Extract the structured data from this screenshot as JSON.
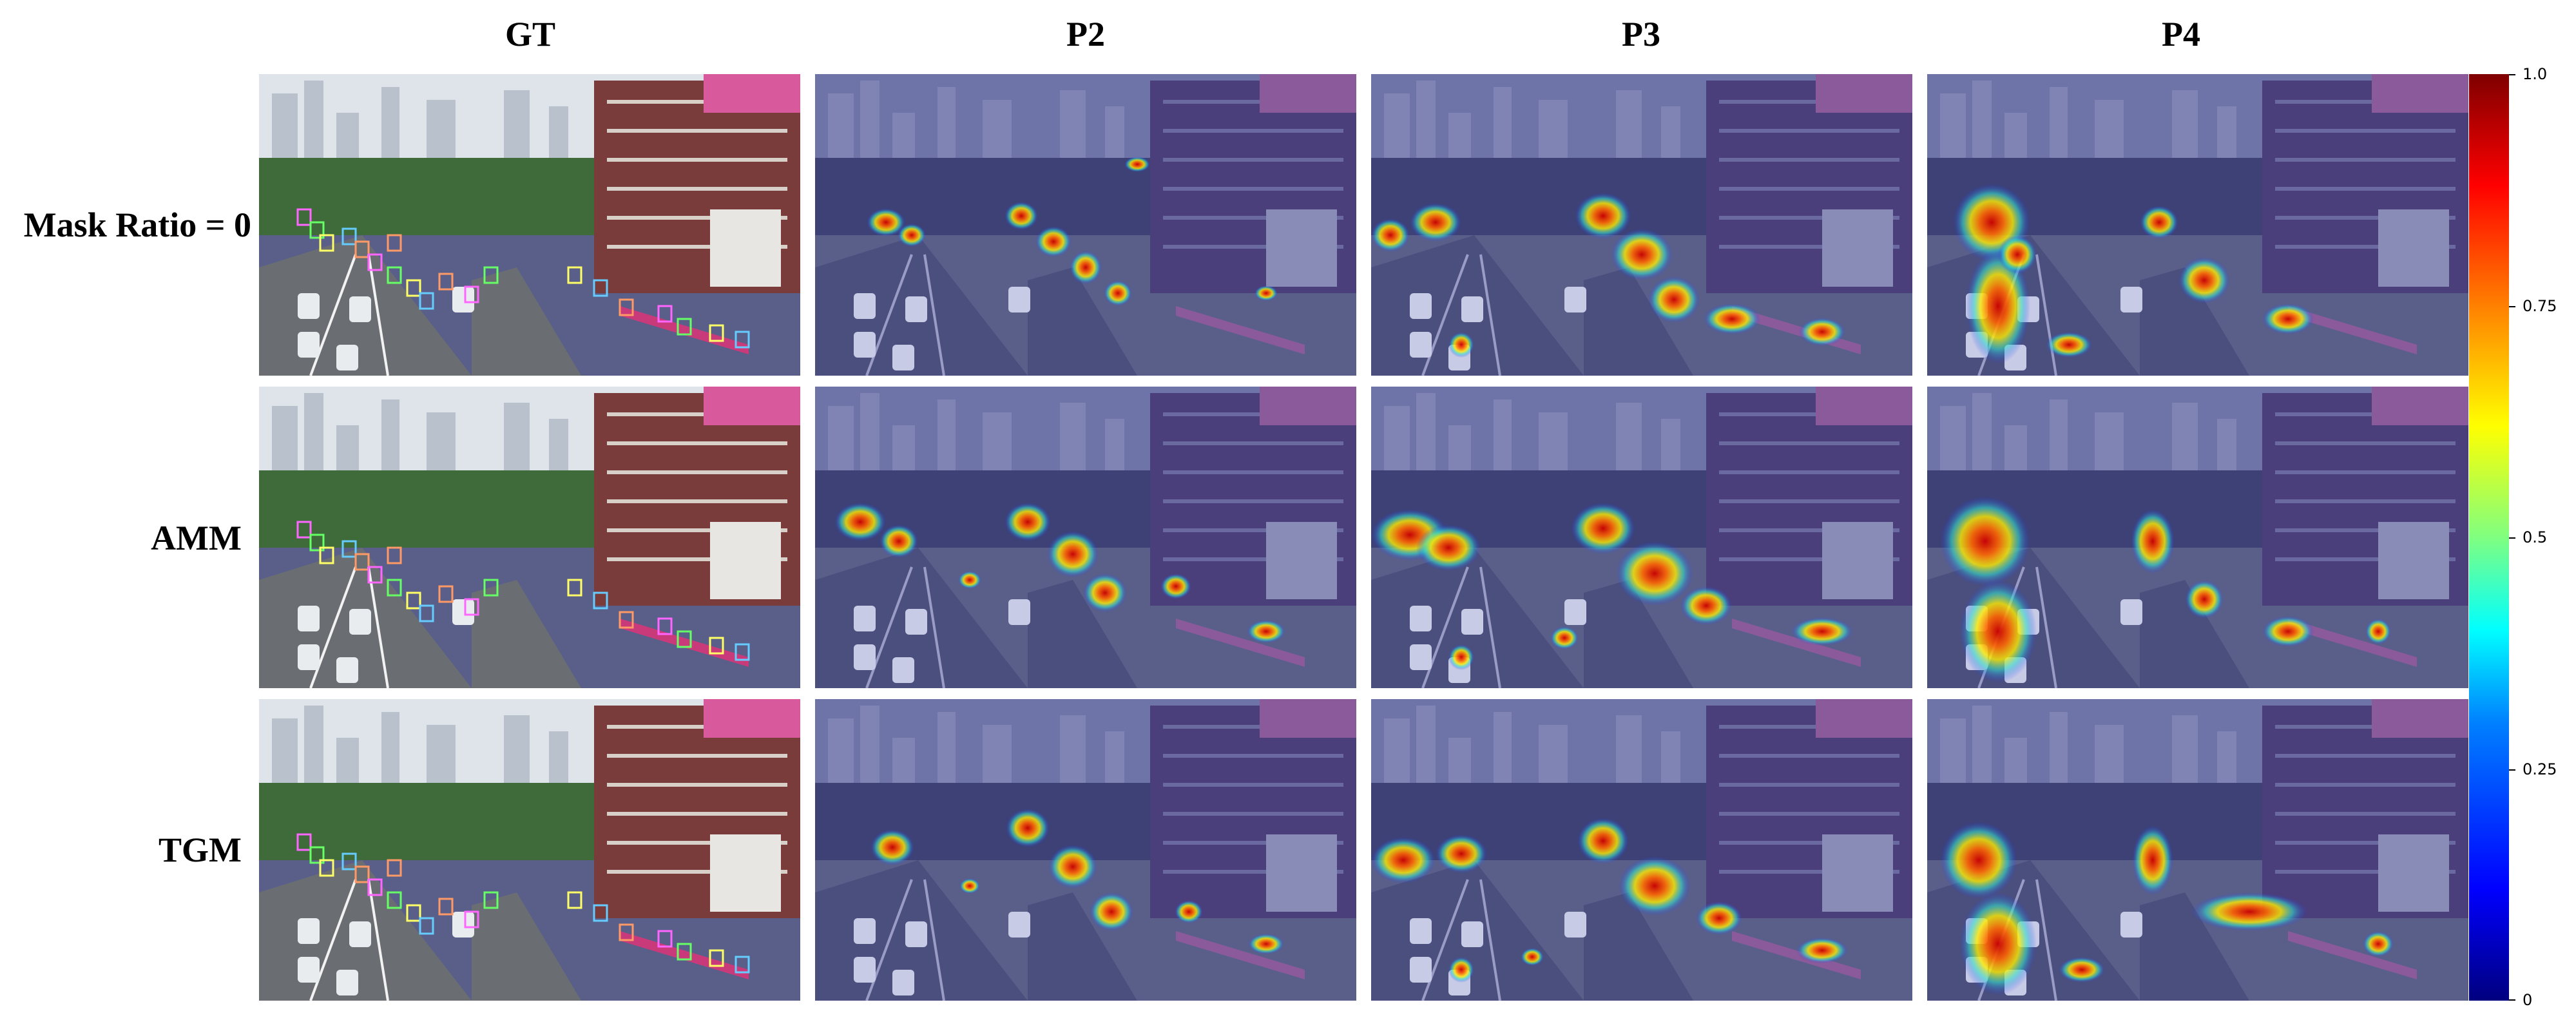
{
  "figure": {
    "column_titles": [
      "GT",
      "P2",
      "P3",
      "P4"
    ],
    "row_labels": [
      "Mask Ratio = 0",
      "AMM",
      "TGM"
    ],
    "colorbar": {
      "ticks": [
        "1.0",
        "0.75",
        "0.5",
        "0.25",
        "0"
      ],
      "min": 0,
      "max": 1.0,
      "colormap": "jet"
    }
  }
}
